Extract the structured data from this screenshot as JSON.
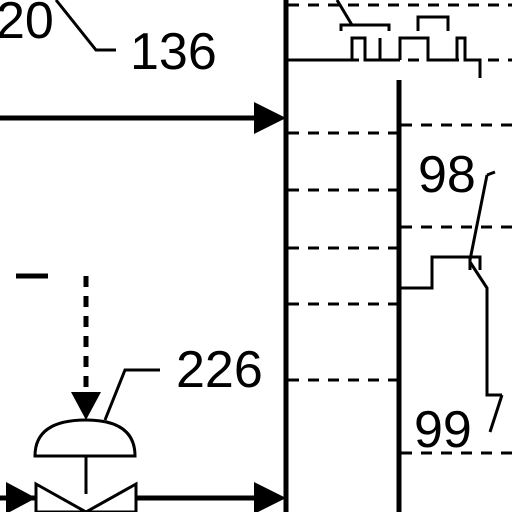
{
  "diagram": {
    "labels": {
      "ref_120_partial": "20",
      "ref_136": "136",
      "ref_98": "98",
      "ref_226": "226",
      "ref_99": "99"
    },
    "stroke_color": "#000000",
    "background_color": "#ffffff",
    "component_icons": [
      "arrow-head-icon",
      "valve-actuator-icon",
      "valve-body-icon"
    ]
  }
}
